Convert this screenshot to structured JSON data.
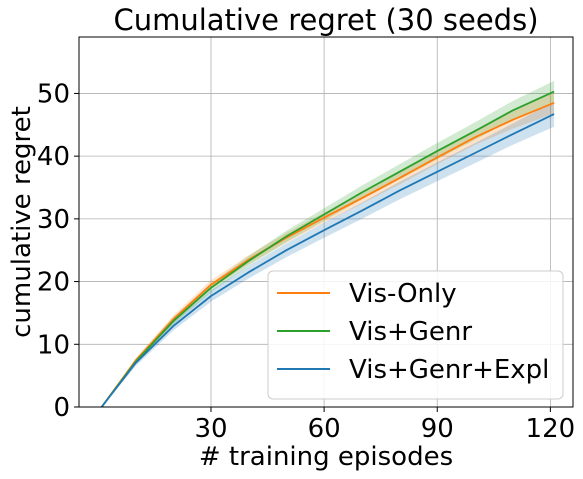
{
  "chart_data": {
    "type": "line",
    "title": "Cumulative regret (30 seeds)",
    "xlabel": "# training episodes",
    "ylabel": "cumulative regret",
    "xlim": [
      -5,
      126
    ],
    "ylim": [
      0,
      59
    ],
    "xticks": [
      30,
      60,
      90,
      120
    ],
    "xtick_labels": [
      "30",
      "60",
      "90",
      "120"
    ],
    "yticks": [
      0,
      10,
      20,
      30,
      40,
      50
    ],
    "ytick_labels": [
      "0",
      "10",
      "20",
      "30",
      "40",
      "50"
    ],
    "grid": true,
    "legend_position": "lower-right",
    "x": [
      1,
      10,
      20,
      30,
      40,
      50,
      60,
      70,
      80,
      90,
      100,
      110,
      121
    ],
    "series": [
      {
        "name": "Vis-Only",
        "color": "#ff7f0e",
        "values": [
          0.0,
          7.4,
          14.0,
          19.5,
          23.5,
          27.0,
          30.2,
          33.3,
          36.5,
          39.8,
          43.0,
          45.8,
          48.5
        ],
        "lower": [
          0.0,
          7.0,
          13.4,
          18.8,
          22.8,
          26.2,
          29.4,
          32.4,
          35.5,
          38.7,
          41.8,
          44.4,
          46.8
        ],
        "upper": [
          0.0,
          7.8,
          14.6,
          20.2,
          24.2,
          27.8,
          31.0,
          34.2,
          37.5,
          40.9,
          44.2,
          47.2,
          50.2
        ]
      },
      {
        "name": "Vis+Genr",
        "color": "#2ca02c",
        "values": [
          0.0,
          7.2,
          13.7,
          19.0,
          23.3,
          27.2,
          30.7,
          34.2,
          37.5,
          40.8,
          44.0,
          47.3,
          50.3
        ],
        "lower": [
          0.0,
          6.8,
          13.1,
          18.3,
          22.5,
          26.3,
          29.7,
          33.1,
          36.3,
          39.5,
          42.6,
          45.8,
          48.6
        ],
        "upper": [
          0.0,
          7.6,
          14.3,
          19.7,
          24.1,
          28.1,
          31.7,
          35.3,
          38.7,
          42.1,
          45.4,
          48.8,
          52.0
        ]
      },
      {
        "name": "Vis+Genr+Expl",
        "color": "#1f77b4",
        "values": [
          0.0,
          7.0,
          12.9,
          17.7,
          21.5,
          25.0,
          28.2,
          31.3,
          34.5,
          37.5,
          40.5,
          43.5,
          46.7
        ],
        "lower": [
          0.0,
          6.5,
          12.2,
          16.8,
          20.5,
          23.9,
          27.0,
          30.0,
          33.1,
          36.0,
          38.9,
          41.8,
          44.7
        ],
        "upper": [
          0.0,
          7.5,
          13.6,
          18.6,
          22.5,
          26.1,
          29.4,
          32.6,
          35.9,
          39.0,
          42.1,
          45.2,
          48.7
        ]
      }
    ]
  }
}
